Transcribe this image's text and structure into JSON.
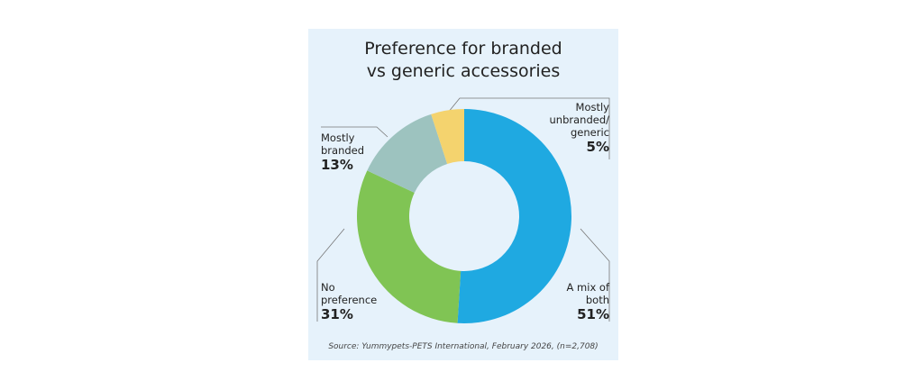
{
  "chart_data": {
    "type": "donut",
    "title": "Preference for branded vs generic accessories",
    "categories": [
      "A mix of both",
      "No preference",
      "Mostly branded",
      "Mostly unbranded/ generic"
    ],
    "values": [
      51,
      31,
      13,
      5
    ],
    "value_labels": [
      "51%",
      "31%",
      "13%",
      "5%"
    ],
    "colors": [
      "#1fa9e1",
      "#80c454",
      "#9dc3bf",
      "#f4d36e"
    ],
    "source": "Source: Yummypets-PETS International, February 2026, (n=2,708)"
  }
}
